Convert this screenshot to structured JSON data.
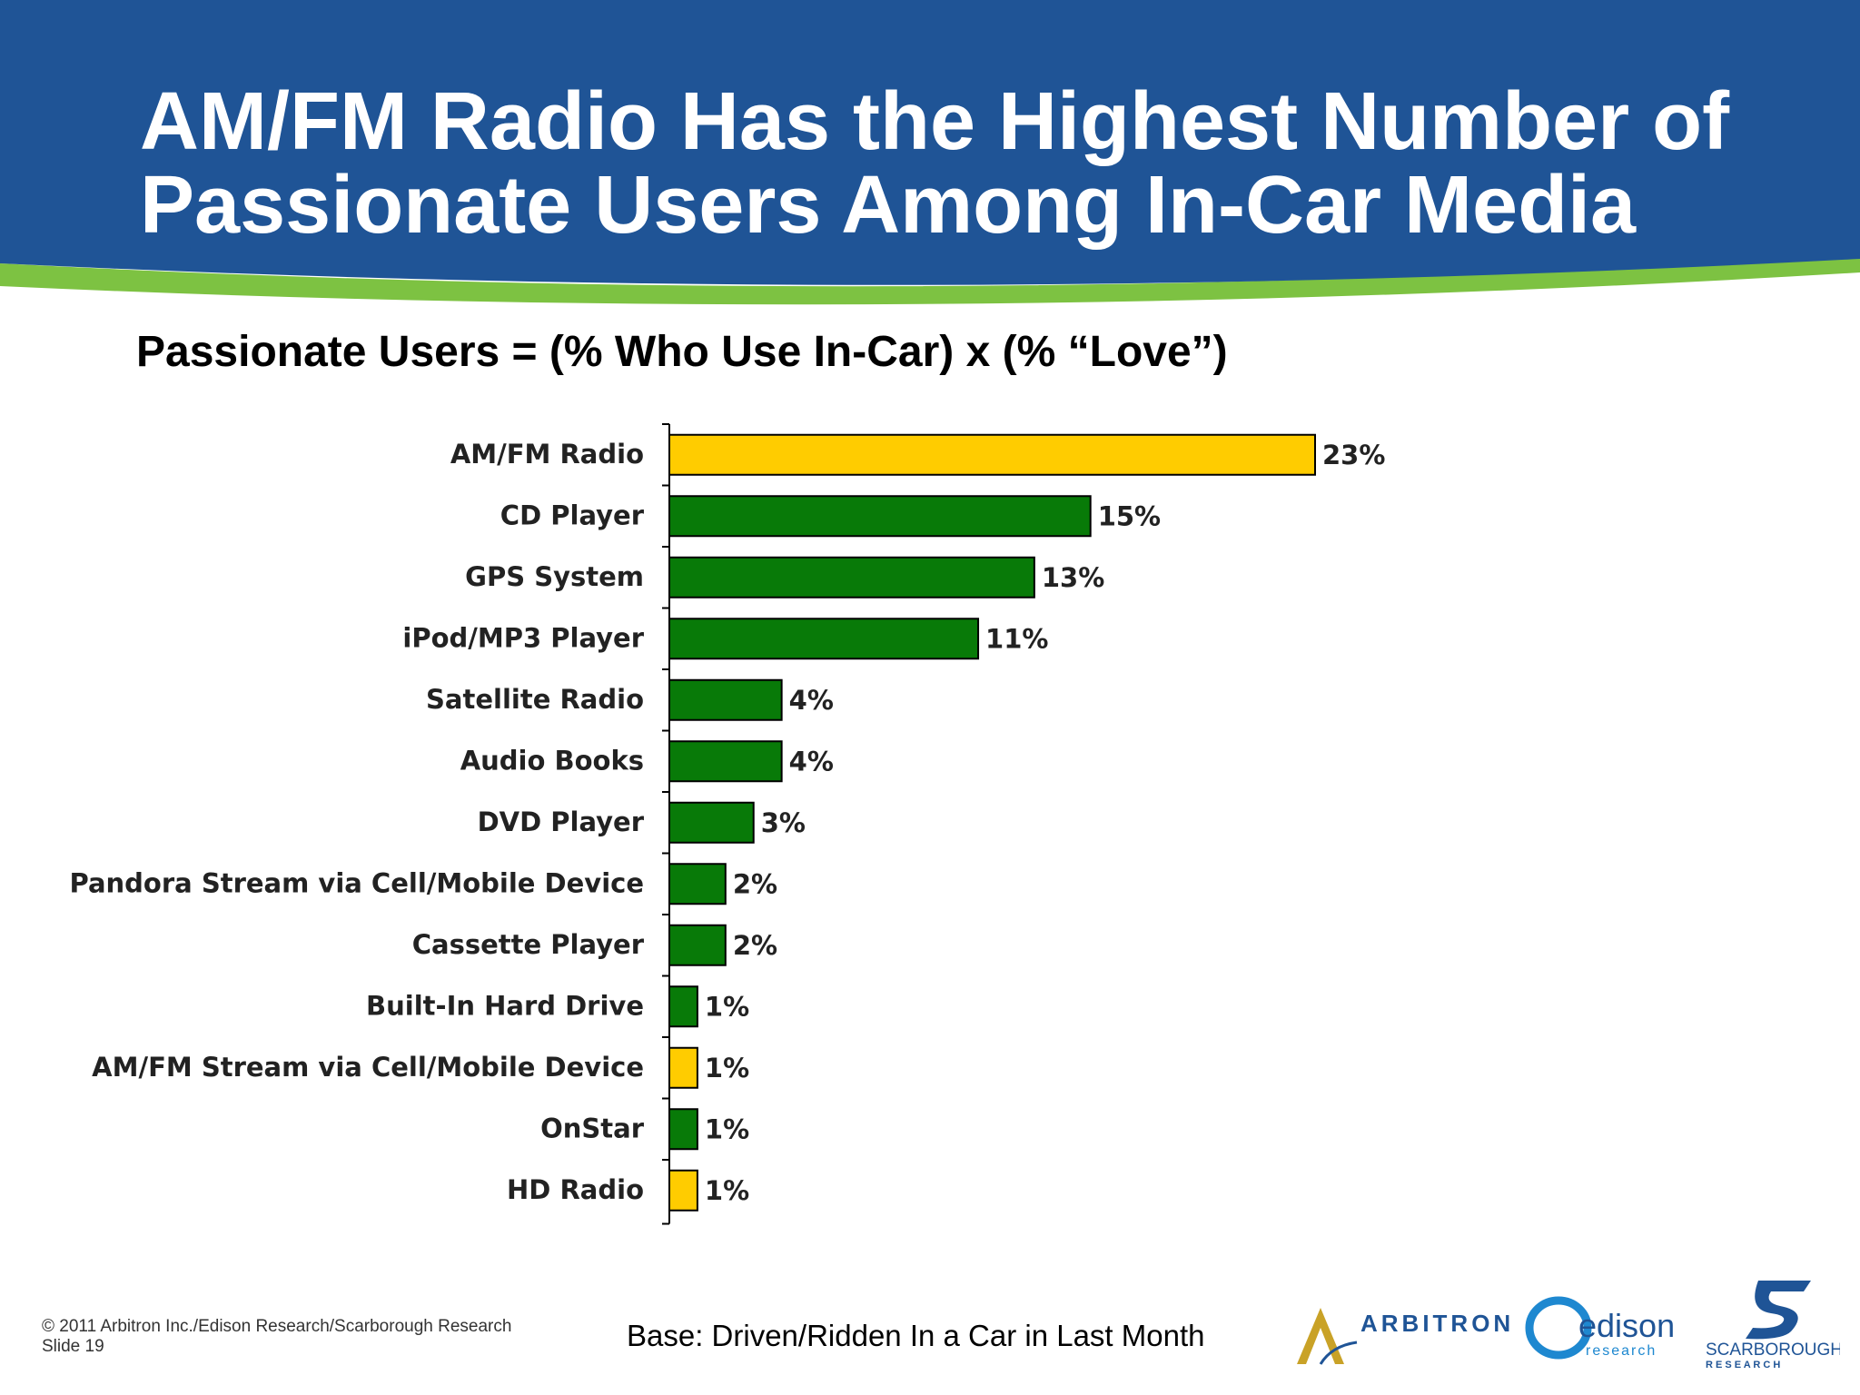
{
  "header": {
    "title_line1": "AM/FM Radio Has the Highest Number of",
    "title_line2": "Passionate Users Among In-Car Media",
    "band_color": "#1F5496",
    "accent_color": "#7DC242"
  },
  "subtitle": "Passionate Users = (% Who Use In-Car) x (% “Love”)",
  "chart_data": {
    "type": "bar",
    "orientation": "horizontal",
    "categories": [
      "AM/FM Radio",
      "CD Player",
      "GPS System",
      "iPod/MP3 Player",
      "Satellite Radio",
      "Audio Books",
      "DVD Player",
      "Pandora Stream via Cell/Mobile Device",
      "Cassette Player",
      "Built-In Hard Drive",
      "AM/FM Stream via Cell/Mobile Device",
      "OnStar",
      "HD Radio"
    ],
    "values": [
      23,
      15,
      13,
      11,
      4,
      4,
      3,
      2,
      2,
      1,
      1,
      1,
      1
    ],
    "data_labels": [
      "23%",
      "15%",
      "13%",
      "11%",
      "4%",
      "4%",
      "3%",
      "2%",
      "2%",
      "1%",
      "1%",
      "1%",
      "1%"
    ],
    "highlight": [
      true,
      false,
      false,
      false,
      false,
      false,
      false,
      false,
      false,
      false,
      true,
      false,
      true
    ],
    "colors": {
      "highlight": "#FFCC00",
      "default": "#087A08",
      "outline": "#000000"
    },
    "xlim": [
      0,
      23
    ],
    "grid": false,
    "legend": "none",
    "title": "",
    "xlabel": "",
    "ylabel": ""
  },
  "footer": {
    "copyright": "© 2011 Arbitron Inc./Edison Research/Scarborough Research",
    "slide": "Slide 19",
    "base": "Base: Driven/Ridden In a Car in Last Month"
  },
  "logos": {
    "arbitron": "ARBITRON",
    "edison": "edison",
    "edison_sub": "research",
    "scarborough": "SCARBOROUGH",
    "scarborough_sub": "R E S E A R C H"
  }
}
